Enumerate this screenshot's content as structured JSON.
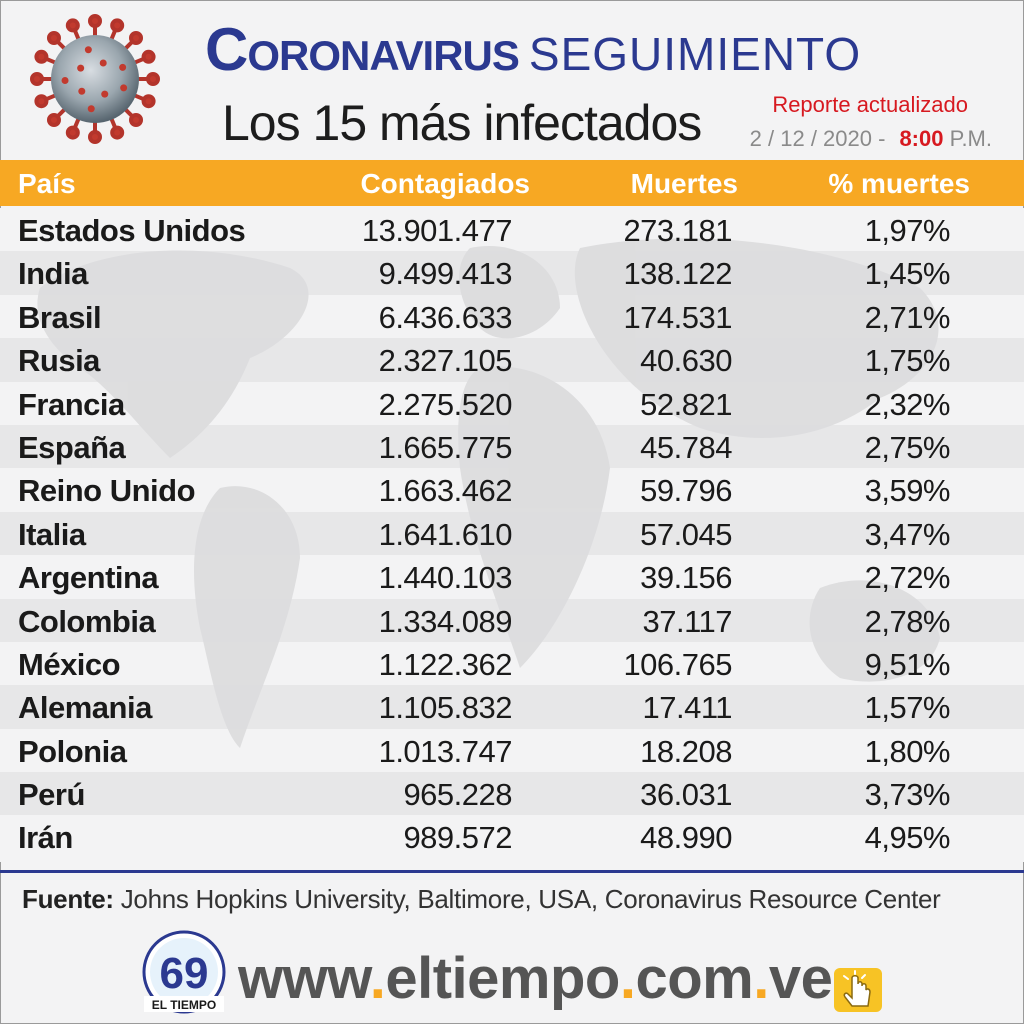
{
  "header": {
    "title_main": "Coronavirus",
    "title_secondary": "SEGUIMIENTO",
    "subtitle": "Los 15 más infectados",
    "report_label": "Reporte actualizado",
    "date": "2 / 12 / 2020 -",
    "time": "8:00",
    "ampm": "P.M."
  },
  "table": {
    "headers": {
      "country": "País",
      "infected": "Contagiados",
      "deaths": "Muertes",
      "pct": "% muertes"
    },
    "rows": [
      {
        "country": "Estados Unidos",
        "infected": "13.901.477",
        "deaths": "273.181",
        "pct": "1,97%"
      },
      {
        "country": "India",
        "infected": "9.499.413",
        "deaths": "138.122",
        "pct": "1,45%"
      },
      {
        "country": "Brasil",
        "infected": "6.436.633",
        "deaths": "174.531",
        "pct": "2,71%"
      },
      {
        "country": "Rusia",
        "infected": "2.327.105",
        "deaths": "40.630",
        "pct": "1,75%"
      },
      {
        "country": "Francia",
        "infected": "2.275.520",
        "deaths": "52.821",
        "pct": "2,32%"
      },
      {
        "country": "España",
        "infected": "1.665.775",
        "deaths": "45.784",
        "pct": "2,75%"
      },
      {
        "country": "Reino Unido",
        "infected": "1.663.462",
        "deaths": "59.796",
        "pct": "3,59%"
      },
      {
        "country": "Italia",
        "infected": "1.641.610",
        "deaths": "57.045",
        "pct": "3,47%"
      },
      {
        "country": "Argentina",
        "infected": "1.440.103",
        "deaths": "39.156",
        "pct": "2,72%"
      },
      {
        "country": "Colombia",
        "infected": "1.334.089",
        "deaths": "37.117",
        "pct": "2,78%"
      },
      {
        "country": "México",
        "infected": "1.122.362",
        "deaths": "106.765",
        "pct": "9,51%"
      },
      {
        "country": "Alemania",
        "infected": "1.105.832",
        "deaths": "17.411",
        "pct": "1,57%"
      },
      {
        "country": "Polonia",
        "infected": "1.013.747",
        "deaths": "18.208",
        "pct": "1,80%"
      },
      {
        "country": "Perú",
        "infected": "965.228",
        "deaths": "36.031",
        "pct": "3,73%"
      },
      {
        "country": "Irán",
        "infected": "989.572",
        "deaths": "48.990",
        "pct": "4,95%"
      }
    ]
  },
  "footer": {
    "source_label": "Fuente:",
    "source_text": "Johns Hopkins University, Baltimore, USA, Coronavirus Resource Center",
    "logo_number": "69",
    "logo_text": "EL TIEMPO",
    "url_parts": [
      "www",
      "eltiempo",
      "com",
      "ve"
    ]
  },
  "colors": {
    "brand_blue": "#2b3990",
    "accent_orange": "#f7a823",
    "alert_red": "#d71920"
  },
  "icons": [
    "coronavirus-icon",
    "world-map-background",
    "el-tiempo-logo",
    "click-hand-icon"
  ]
}
